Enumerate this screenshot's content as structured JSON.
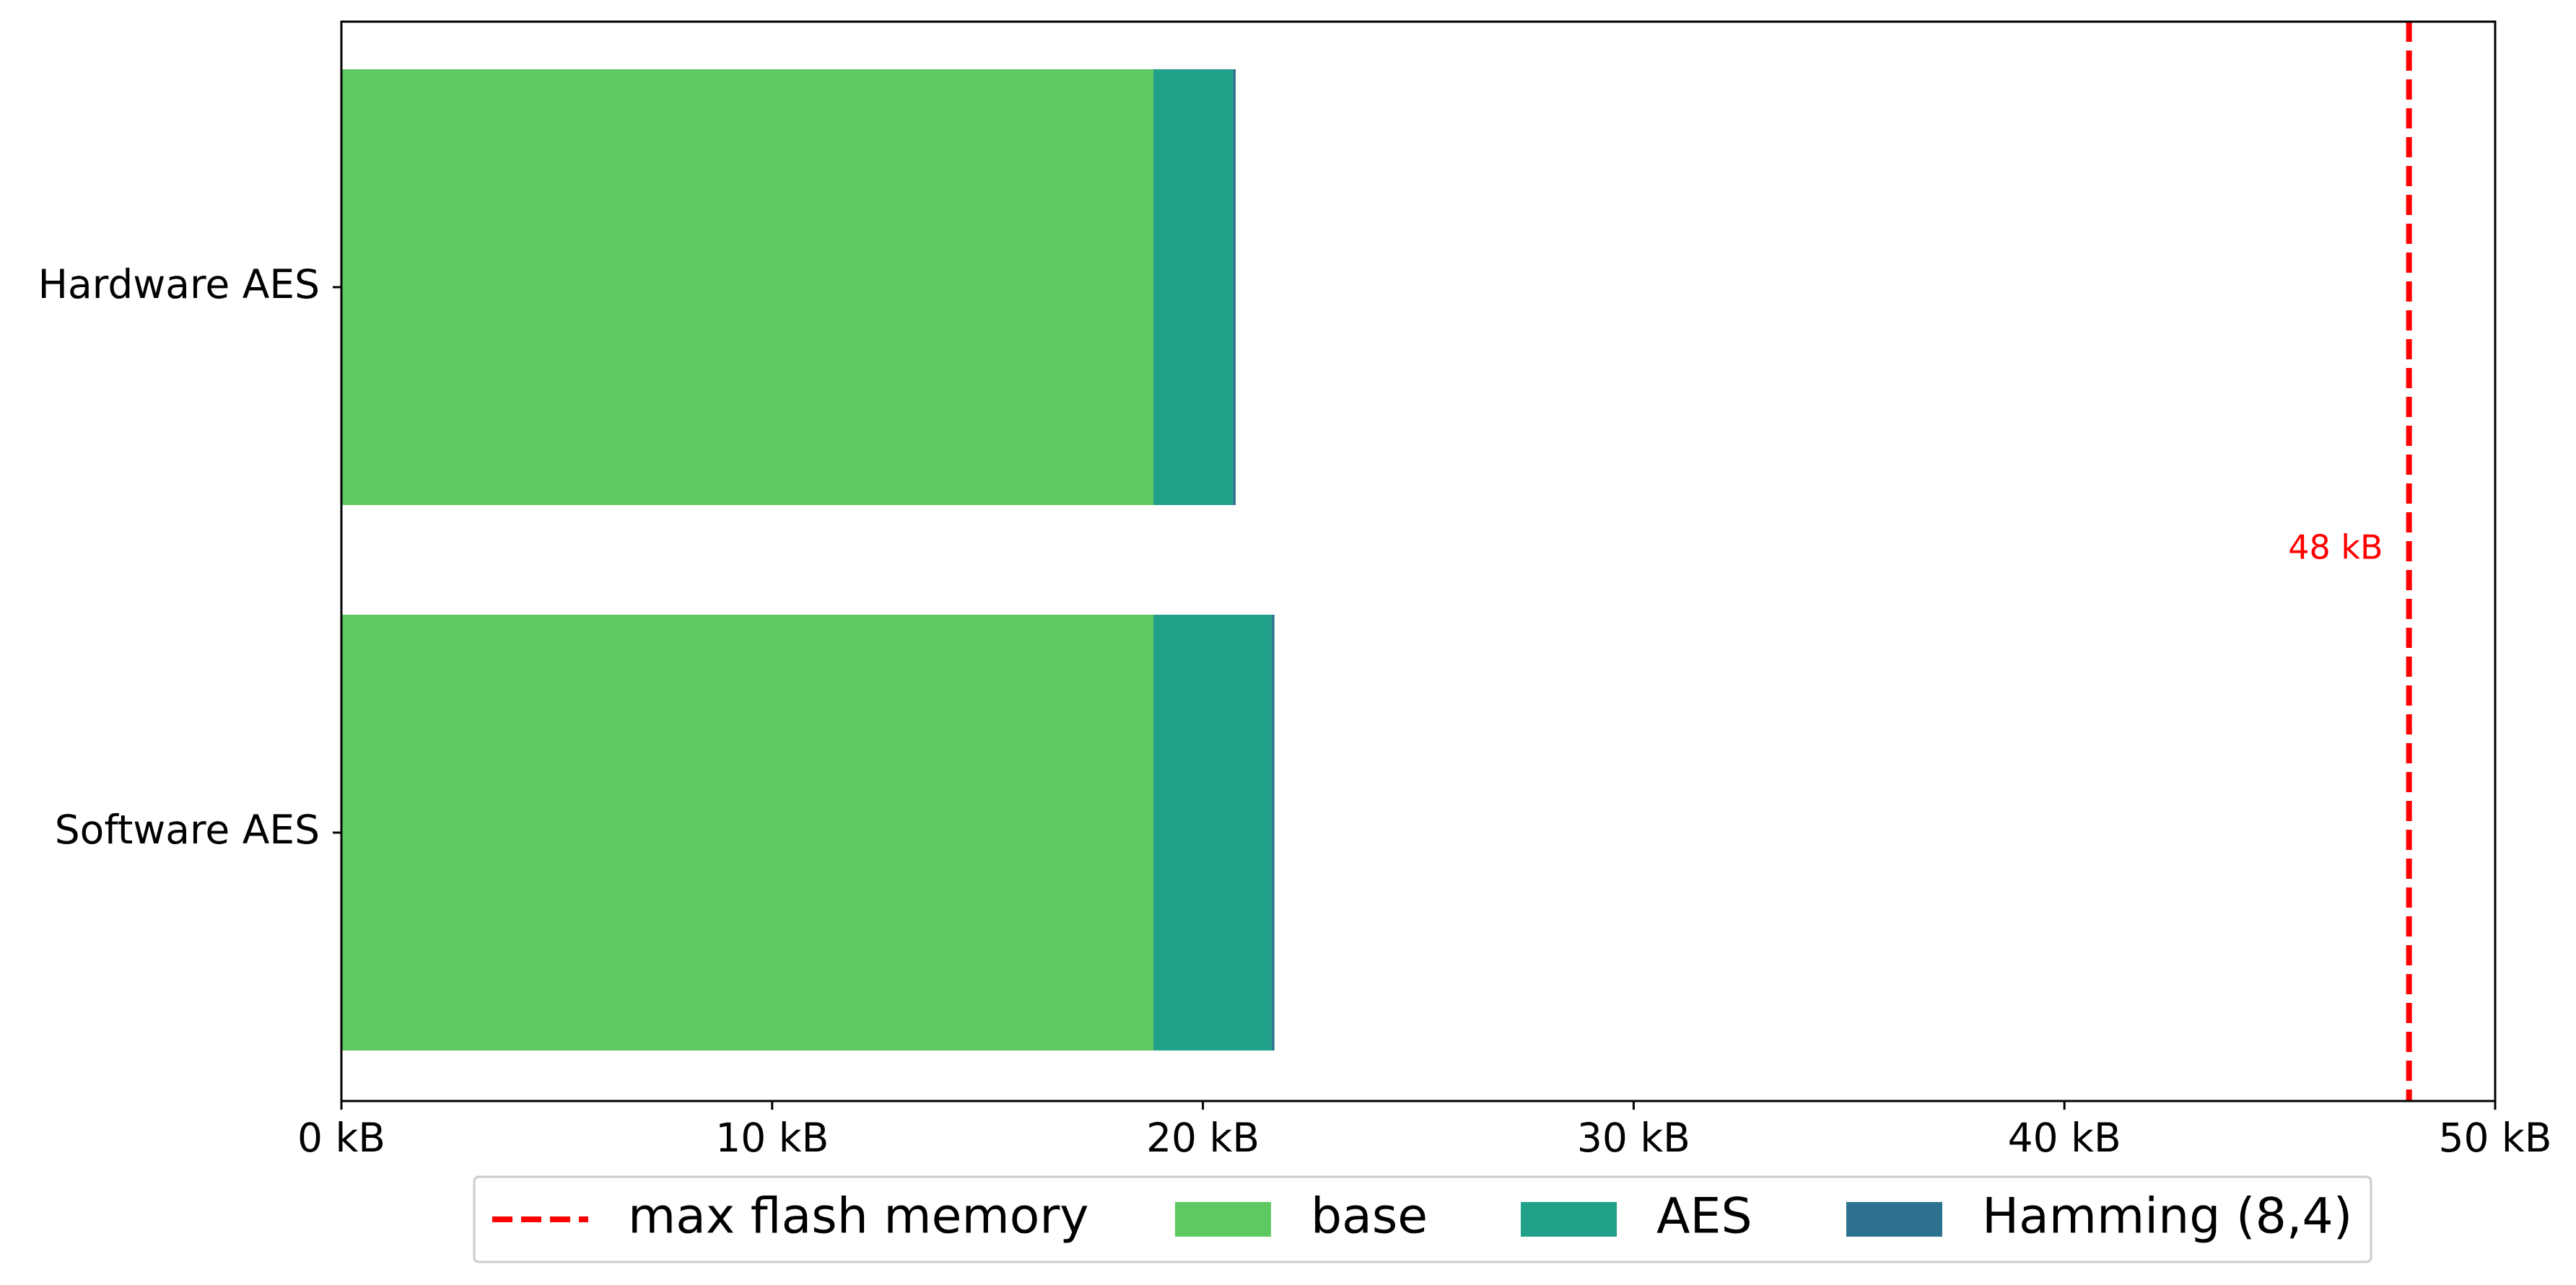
{
  "chart_data": {
    "type": "bar",
    "orientation": "horizontal",
    "stacked": true,
    "categories": [
      "Hardware AES",
      "Software AES"
    ],
    "series": [
      {
        "name": "base",
        "values": [
          18.85,
          18.85
        ],
        "color": "#5ec962"
      },
      {
        "name": "AES",
        "values": [
          1.85,
          2.75
        ],
        "color": "#21a08a"
      },
      {
        "name": "Hamming (8,4)",
        "values": [
          0.06,
          0.06
        ],
        "color": "#2c718e"
      }
    ],
    "reference_line": {
      "name": "max flash memory",
      "value": 48,
      "label": "48 kB",
      "color": "#ff0000",
      "style": "dashed"
    },
    "xlim": [
      0,
      50
    ],
    "x_ticks": [
      0,
      10,
      20,
      30,
      40,
      50
    ],
    "x_tick_labels": [
      "0 kB",
      "10 kB",
      "20 kB",
      "30 kB",
      "40 kB",
      "50 kB"
    ],
    "title": "",
    "xlabel": "",
    "ylabel": "",
    "grid": false,
    "legend_position": "bottom-center"
  }
}
